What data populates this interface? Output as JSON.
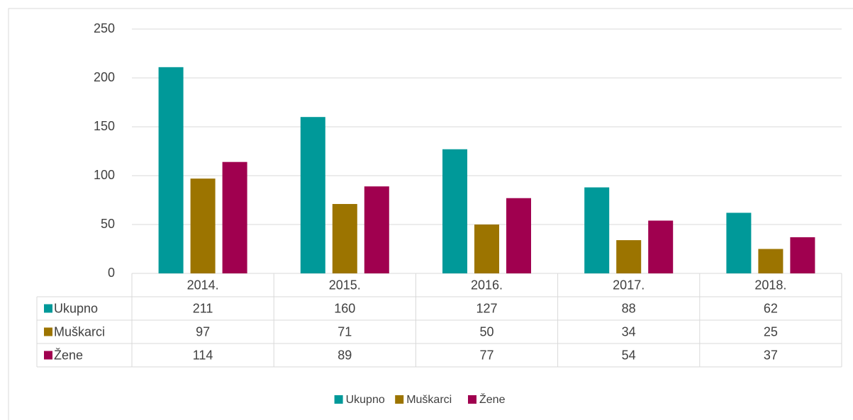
{
  "chart_data": {
    "type": "bar",
    "categories": [
      "2014.",
      "2015.",
      "2016.",
      "2017.",
      "2018."
    ],
    "series": [
      {
        "name": "Ukupno",
        "color": "#009999",
        "values": [
          211,
          160,
          127,
          88,
          62
        ]
      },
      {
        "name": "Muškarci",
        "color": "#9c7400",
        "values": [
          97,
          71,
          50,
          34,
          25
        ]
      },
      {
        "name": "Žene",
        "color": "#a0004f",
        "values": [
          114,
          89,
          77,
          54,
          37
        ]
      }
    ],
    "ylim": [
      0,
      250
    ],
    "yticks": [
      0,
      50,
      100,
      150,
      200,
      250
    ],
    "grid": true,
    "legend": "bottom"
  }
}
